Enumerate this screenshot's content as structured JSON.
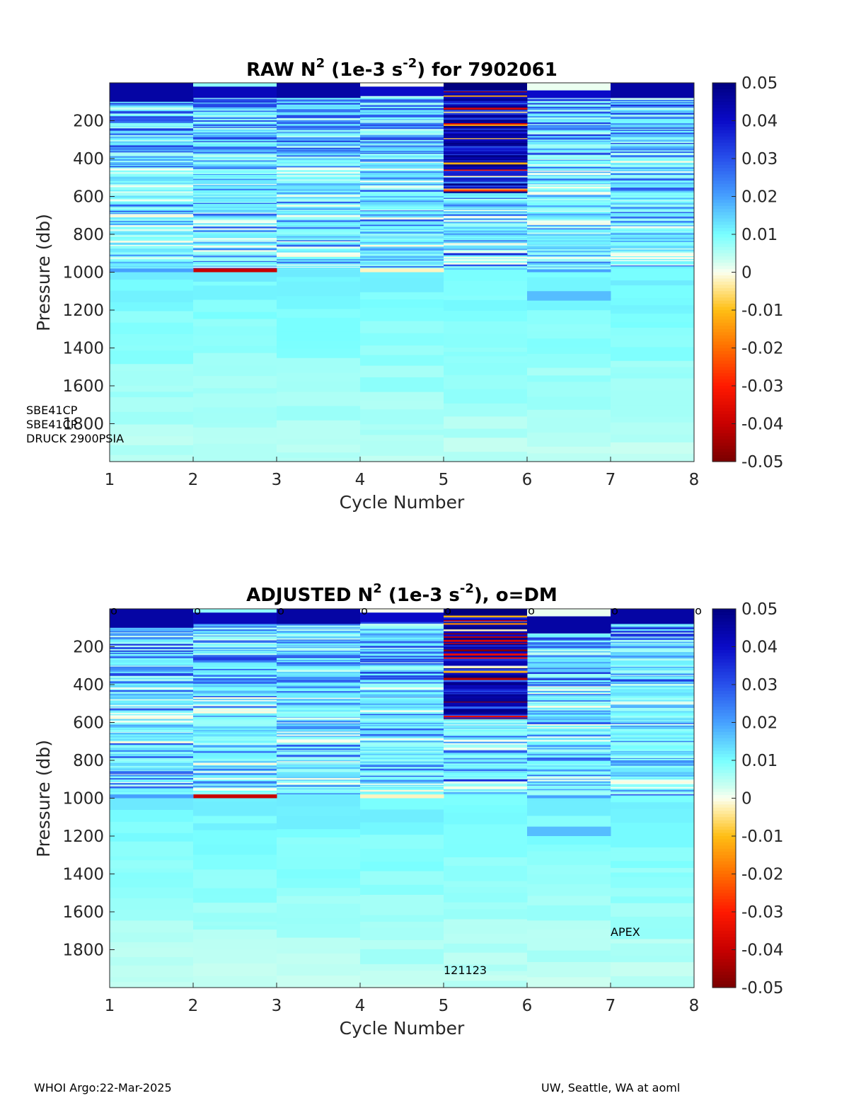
{
  "footer": {
    "left": "WHOI Argo:22-Mar-2025",
    "right": "UW, Seattle, WA at aoml"
  },
  "colorbar": {
    "ticks": [
      "0.05",
      "0.04",
      "0.03",
      "0.02",
      "0.01",
      "0",
      "-0.01",
      "-0.02",
      "-0.03",
      "-0.04",
      "-0.05"
    ],
    "range": [
      -0.05,
      0.05
    ]
  },
  "chart_data": [
    {
      "type": "heatmap",
      "title_parts": [
        "RAW N",
        "2",
        " (1e-3 s",
        "-2",
        ") for 7902061"
      ],
      "xlabel": "Cycle Number",
      "ylabel": "Pressure (db)",
      "x_ticks": [
        "1",
        "2",
        "3",
        "4",
        "5",
        "6",
        "7",
        "8"
      ],
      "y_ticks": [
        "200",
        "400",
        "600",
        "800",
        "1000",
        "1200",
        "1400",
        "1600",
        "1800"
      ],
      "xlim": [
        1,
        8
      ],
      "ylim": [
        2000,
        0
      ],
      "annotations": [
        "SBE41CP",
        "SBE41CP",
        "DRUCK 2900PSIA"
      ],
      "cycles": [
        1,
        2,
        3,
        4,
        5,
        6,
        7
      ],
      "bands": [
        {
          "cycle": 1,
          "p_from": 0,
          "p_to": 100,
          "value": 0.045
        },
        {
          "cycle": 2,
          "p_from": 0,
          "p_to": 20,
          "value": 0.008
        },
        {
          "cycle": 2,
          "p_from": 20,
          "p_to": 80,
          "value": 0.042
        },
        {
          "cycle": 3,
          "p_from": 0,
          "p_to": 80,
          "value": 0.045
        },
        {
          "cycle": 4,
          "p_from": 0,
          "p_to": 20,
          "value": 0.0
        },
        {
          "cycle": 4,
          "p_from": 20,
          "p_to": 70,
          "value": 0.04
        },
        {
          "cycle": 5,
          "p_from": 0,
          "p_to": 580,
          "value": 0.05
        },
        {
          "cycle": 6,
          "p_from": 0,
          "p_to": 40,
          "value": 0.001
        },
        {
          "cycle": 6,
          "p_from": 40,
          "p_to": 80,
          "value": 0.04
        },
        {
          "cycle": 7,
          "p_from": 0,
          "p_to": 80,
          "value": 0.045
        },
        {
          "cycle": 2,
          "p_from": 980,
          "p_to": 1000,
          "value": -0.04
        },
        {
          "cycle": 4,
          "p_from": 980,
          "p_to": 1000,
          "value": -0.002
        },
        {
          "cycle": 1,
          "p_from": 980,
          "p_to": 1000,
          "value": 0.02
        },
        {
          "cycle": 6,
          "p_from": 985,
          "p_to": 1000,
          "value": 0.02
        },
        {
          "cycle": 1,
          "p_from": 700,
          "p_to": 710,
          "value": -0.001
        },
        {
          "cycle": 5,
          "p_from": 900,
          "p_to": 910,
          "value": 0.035
        },
        {
          "cycle": 6,
          "p_from": 1100,
          "p_to": 1150,
          "value": 0.017
        }
      ]
    },
    {
      "type": "heatmap",
      "title_parts": [
        "ADJUSTED N",
        "2",
        " (1e-3 s",
        "-2",
        "), o=DM"
      ],
      "xlabel": "Cycle Number",
      "ylabel": "Pressure (db)",
      "x_ticks": [
        "1",
        "2",
        "3",
        "4",
        "5",
        "6",
        "7",
        "8"
      ],
      "y_ticks": [
        "200",
        "400",
        "600",
        "800",
        "1000",
        "1200",
        "1400",
        "1600",
        "1800"
      ],
      "xlim": [
        1,
        8
      ],
      "ylim": [
        2000,
        0
      ],
      "annotations": [
        "APEX",
        "121123"
      ],
      "dm_marker": "o",
      "dm_cycles": [
        1,
        2,
        3,
        4,
        5,
        6,
        7,
        8
      ],
      "cycles": [
        1,
        2,
        3,
        4,
        5,
        6,
        7
      ],
      "bands": [
        {
          "cycle": 1,
          "p_from": 0,
          "p_to": 100,
          "value": 0.045
        },
        {
          "cycle": 2,
          "p_from": 0,
          "p_to": 20,
          "value": 0.008
        },
        {
          "cycle": 2,
          "p_from": 20,
          "p_to": 80,
          "value": 0.042
        },
        {
          "cycle": 3,
          "p_from": 0,
          "p_to": 80,
          "value": 0.045
        },
        {
          "cycle": 4,
          "p_from": 0,
          "p_to": 20,
          "value": 0.0
        },
        {
          "cycle": 4,
          "p_from": 20,
          "p_to": 70,
          "value": 0.04
        },
        {
          "cycle": 5,
          "p_from": 0,
          "p_to": 580,
          "value": 0.05
        },
        {
          "cycle": 6,
          "p_from": 0,
          "p_to": 40,
          "value": 0.001
        },
        {
          "cycle": 6,
          "p_from": 40,
          "p_to": 130,
          "value": 0.045
        },
        {
          "cycle": 7,
          "p_from": 0,
          "p_to": 80,
          "value": 0.045
        },
        {
          "cycle": 2,
          "p_from": 980,
          "p_to": 1000,
          "value": -0.04
        },
        {
          "cycle": 4,
          "p_from": 980,
          "p_to": 1000,
          "value": -0.002
        },
        {
          "cycle": 1,
          "p_from": 980,
          "p_to": 1000,
          "value": 0.02
        },
        {
          "cycle": 6,
          "p_from": 985,
          "p_to": 1000,
          "value": 0.02
        },
        {
          "cycle": 1,
          "p_from": 700,
          "p_to": 710,
          "value": -0.001
        },
        {
          "cycle": 5,
          "p_from": 900,
          "p_to": 910,
          "value": 0.035
        },
        {
          "cycle": 5,
          "p_from": 1500,
          "p_to": 1550,
          "value": 0.008
        },
        {
          "cycle": 6,
          "p_from": 1150,
          "p_to": 1200,
          "value": 0.017
        }
      ]
    }
  ]
}
